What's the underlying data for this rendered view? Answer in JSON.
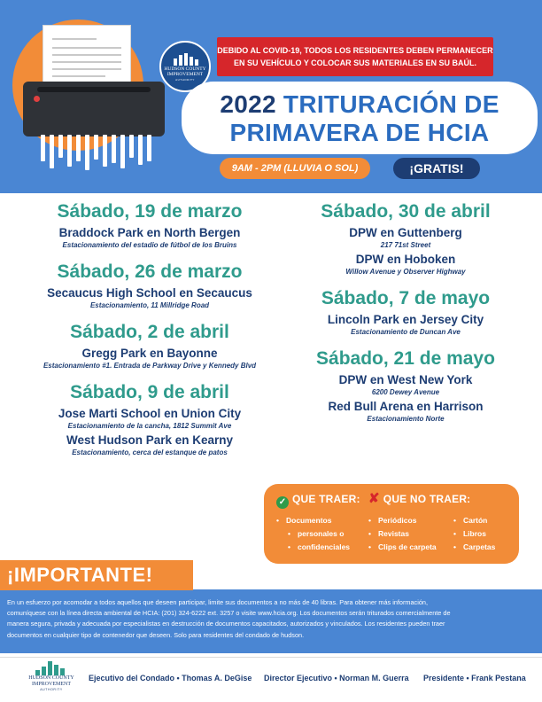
{
  "header": {
    "covid_notice_line1": "DEBIDO AL COVID-19, TODOS LOS RESIDENTES DEBEN PERMANECER",
    "covid_notice_line2": "EN SU VEHÍCULO Y COLOCAR SUS MATERIALES EN SU BAÚL.",
    "title_year": "2022",
    "title_line1_rest": "TRITURACIÓN DE",
    "title_line2": "PRIMAVERA DE HCIA",
    "time": "9AM - 2PM (LLUVIA O SOL)",
    "free": "¡GRATIS!",
    "seal_text": "HUDSON COUNTY IMPROVEMENT",
    "seal_subtext": "AUTHORITY"
  },
  "events_left": [
    {
      "date": "Sábado, 19 de marzo",
      "locations": [
        {
          "name": "Braddock Park en North Bergen",
          "sub": "Estacionamiento del estadio de fútbol de los Bruins"
        }
      ]
    },
    {
      "date": "Sábado, 26 de marzo",
      "locations": [
        {
          "name": "Secaucus High School en Secaucus",
          "sub": "Estacionamiento, 11 Millridge Road"
        }
      ]
    },
    {
      "date": "Sábado, 2 de abril",
      "locations": [
        {
          "name": "Gregg Park en Bayonne",
          "sub": "Estacionamiento #1. Entrada de Parkway Drive y Kennedy Blvd"
        }
      ]
    },
    {
      "date": "Sábado, 9 de abril",
      "locations": [
        {
          "name": "Jose Marti School en Union City",
          "sub": "Estacionamiento de la cancha, 1812 Summit Ave"
        },
        {
          "name": "West Hudson Park en Kearny",
          "sub": "Estacionamiento, cerca del estanque de patos"
        }
      ]
    }
  ],
  "events_right": [
    {
      "date": "Sábado, 30 de abril",
      "locations": [
        {
          "name": "DPW en Guttenberg",
          "sub": "217 71st Street"
        },
        {
          "name": "DPW en Hoboken",
          "sub": "Willow Avenue y Observer Highway"
        }
      ]
    },
    {
      "date": "Sábado, 7 de mayo",
      "locations": [
        {
          "name": "Lincoln Park en Jersey City",
          "sub": "Estacionamiento de Duncan Ave"
        }
      ]
    },
    {
      "date": "Sábado, 21 de mayo",
      "locations": [
        {
          "name": "DPW en West New York",
          "sub": "6200 Dewey Avenue"
        },
        {
          "name": "Red Bull Arena en Harrison",
          "sub": "Estacionamiento Norte"
        }
      ]
    }
  ],
  "bring": {
    "yes_title": "QUE TRAER:",
    "no_title": "QUE NO TRAER:",
    "yes_item_line1": "Documentos",
    "yes_item_line2": "personales o",
    "yes_item_line3": "confidenciales",
    "no_items_col1": [
      "Periódicos",
      "Revistas",
      "Clips de carpeta"
    ],
    "no_items_col2": [
      "Cartón",
      "Libros",
      "Carpetas"
    ],
    "yes_icon": "check-icon",
    "no_icon": "x-icon"
  },
  "important": {
    "title": "¡IMPORTANTE!",
    "line1": "En un esfuerzo por acomodar a todos aquellos que deseen participar, limite sus documentos a no más de 40 libras. Para obtener más información,",
    "line2": "comuníquese con la línea directa ambiental de HCIA: (201) 324-6222 ext. 3257 o visite www.hcia.org. Los documentos serán triturados comercialmente de",
    "line3": "manera segura, privada y adecuada por especialistas en destrucción de documentos capacitados, autorizados y vinculados. Los residentes pueden traer",
    "line4": "documentos en cualquier tipo de contenedor que deseen. Solo para residentes del condado de hudson."
  },
  "footer": {
    "logo_line1": "HUDSON COUNTY",
    "logo_line2": "IMPROVEMENT",
    "logo_line3": "AUTHORITY",
    "credit1": "Ejecutivo del Condado • Thomas A. DeGise",
    "credit2": "Director Ejecutivo • Norman M. Guerra",
    "credit3": "Presidente • Frank Pestana"
  },
  "colors": {
    "header_blue": "#4a86d3",
    "orange": "#f28c38",
    "red": "#d6262b",
    "navy": "#1d3d73",
    "teal": "#2f9b8c"
  }
}
